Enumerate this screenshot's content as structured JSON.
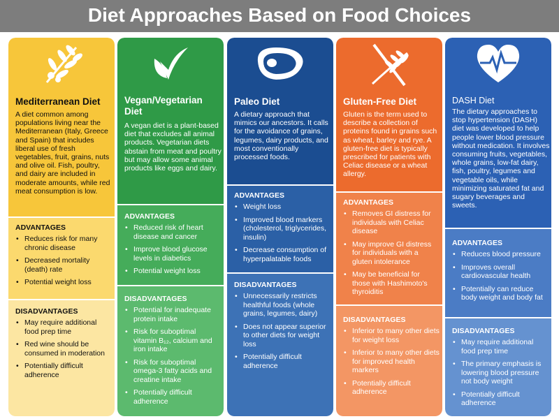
{
  "title": "Diet Approaches Based on Food Choices",
  "diets": [
    {
      "name": "Mediterranean Diet",
      "icon": "olive-branch-icon",
      "description": "A diet common among populations living near the Mediterranean (Italy, Greece and Spain) that includes liberal use of fresh vegetables, fruit, grains, nuts and olive oil. Fish, poultry, and dairy are included in moderate amounts, while red meat consumption is low.",
      "advantages_header": "ADVANTAGES",
      "advantages": [
        "Reduces risk for many chronic disease",
        "Decreased mortality (death) rate",
        "Potential weight loss"
      ],
      "disadvantages_header": "DISADVANTAGES",
      "disadvantages": [
        "May require additional food prep time",
        "Red wine should be consumed in moderation",
        "Potentially difficult adherence"
      ]
    },
    {
      "name": "Vegan/Vegetarian Diet",
      "icon": "leaf-check-icon",
      "description": "A vegan diet is a plant-based diet that excludes all animal products. Vegetarian diets abstain from meat and poultry but may allow some animal products like eggs and dairy.",
      "advantages_header": "ADVANTAGES",
      "advantages": [
        "Reduced risk of heart disease and cancer",
        "Improve blood glucose levels in diabetics",
        "Potential weight loss"
      ],
      "disadvantages_header": "DISADVANTAGES",
      "disadvantages": [
        "Potential for inadequate protein intake",
        "Risk for suboptimal vitamin B₁₂, calcium and iron intake",
        "Risk for suboptimal omega-3 fatty acids and creatine intake",
        "Potentially difficult adherence"
      ]
    },
    {
      "name": "Paleo Diet",
      "icon": "steak-icon",
      "description": "A dietary approach that mimics our ancestors. It calls for the avoidance of grains, legumes, dairy products, and most conventionally processed foods.",
      "advantages_header": "ADVANTAGES",
      "advantages": [
        "Weight loss",
        "Improved blood markers (cholesterol, triglycerides, insulin)",
        "Decrease consumption of hyperpalatable foods"
      ],
      "disadvantages_header": "DISADVANTAGES",
      "disadvantages": [
        "Unnecessarily restricts healthful foods (whole grains, legumes, dairy)",
        "Does not appear superior to other diets for weight loss",
        "Potentially difficult adherence"
      ]
    },
    {
      "name": "Gluten-Free Diet",
      "icon": "no-wheat-icon",
      "description": "Gluten is the term used to describe a collection of proteins found in grains such as wheat, barley and rye. A gluten-free diet is typically prescribed for patients with Celiac disease or a wheat allergy.",
      "advantages_header": "ADVANTAGES",
      "advantages": [
        "Removes GI distress for individuals with Celiac disease",
        "May improve GI distress for individuals with a gluten intolerance",
        "May be beneficial for those with Hashimoto's thyroiditis"
      ],
      "disadvantages_header": "DISADVANTAGES",
      "disadvantages": [
        "Inferior to many other diets for weight loss",
        "Inferior to many other diets for improved health markers",
        "Potentially difficult adherence"
      ]
    },
    {
      "name": "DASH Diet",
      "icon": "heart-pulse-icon",
      "description": "The dietary approaches to stop hypertension (DASH) diet was developed to help people lower blood pressure without medication. It involves consuming fruits, vegetables, whole grains, low-fat dairy, fish, poultry, legumes and vegetable oils, while minimizing saturated fat and sugary beverages and sweets.",
      "advantages_header": "ADVANTAGES",
      "advantages": [
        "Reduces blood pressure",
        "Improves overall cardiovascular health",
        "Potentially can reduce body weight and body fat"
      ],
      "disadvantages_header": "DISADVANTAGES",
      "disadvantages": [
        "May require additional food prep time",
        "The primary emphasis is lowering blood pressure not body weight",
        "Potentially difficult adherence"
      ]
    }
  ]
}
